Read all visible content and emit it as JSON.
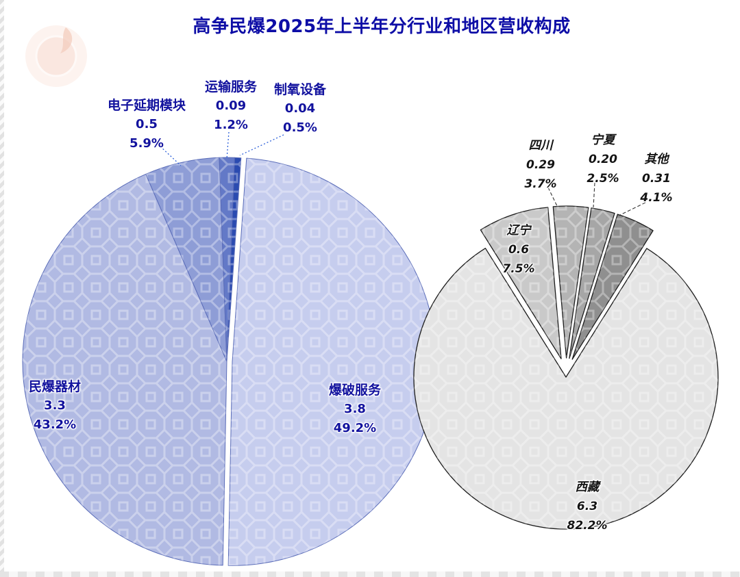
{
  "title": {
    "text": "高争民爆2025年上半年分行业和地区营收构成",
    "color": "#0d0da6"
  },
  "colors": {
    "left_label_text": "#12129e",
    "right_label_text": "#141414",
    "left_pie_stroke": "#5a6cb8",
    "right_pie_stroke": "#1b1b1b"
  },
  "chart_data": [
    {
      "type": "pie",
      "title": "",
      "legend_position": "none",
      "start_angle": 4,
      "slices": [
        {
          "label": "爆破服务",
          "value": 3.8,
          "value_label": "3.8",
          "pct": 49.2,
          "pct_label": "49.2%",
          "color": "#c6cdee",
          "explode": 8
        },
        {
          "label": "民爆器材",
          "value": 3.3,
          "value_label": "3.3",
          "pct": 43.2,
          "pct_label": "43.2%",
          "color": "#b1bae3",
          "explode": 0
        },
        {
          "label": "电子延期模块",
          "value": 0.5,
          "value_label": "0.5",
          "pct": 5.9,
          "pct_label": "5.9%",
          "color": "#8e9dd6",
          "explode": 0
        },
        {
          "label": "运输服务",
          "value": 0.09,
          "value_label": "0.09",
          "pct": 1.2,
          "pct_label": "1.2%",
          "color": "#6379c7",
          "explode": 0
        },
        {
          "label": "制氧设备",
          "value": 0.04,
          "value_label": "0.04",
          "pct": 0.5,
          "pct_label": "0.5%",
          "color": "#2b4bb0",
          "explode": 0
        }
      ]
    },
    {
      "type": "pie",
      "title": "",
      "legend_position": "none",
      "start_angle": -32,
      "slices": [
        {
          "label": "辽宁",
          "value": 0.6,
          "value_label": "0.6",
          "pct": 7.5,
          "pct_label": "7.5%",
          "color": "#c9c9c9",
          "explode": 22
        },
        {
          "label": "四川",
          "value": 0.29,
          "value_label": "0.29",
          "pct": 3.7,
          "pct_label": "3.7%",
          "color": "#b4b4b4",
          "explode": 22
        },
        {
          "label": "宁夏",
          "value": 0.2,
          "value_label": "0.20",
          "pct": 2.5,
          "pct_label": "2.5%",
          "color": "#a6a6a6",
          "explode": 22
        },
        {
          "label": "其他",
          "value": 0.31,
          "value_label": "0.31",
          "pct": 4.1,
          "pct_label": "4.1%",
          "color": "#8f8f8f",
          "explode": 22
        },
        {
          "label": "西藏",
          "value": 6.3,
          "value_label": "6.3",
          "pct": 82.2,
          "pct_label": "82.2%",
          "color": "#e4e4e4",
          "explode": 6
        }
      ]
    }
  ]
}
